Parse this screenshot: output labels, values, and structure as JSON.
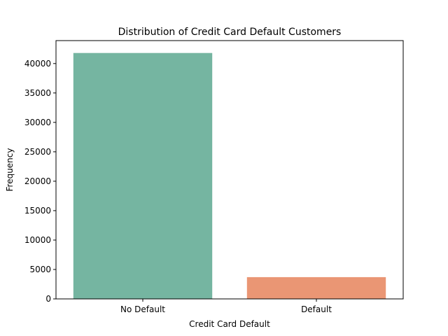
{
  "chart_data": {
    "type": "bar",
    "title": "Distribution of Credit Card Default Customers",
    "xlabel": "Credit Card Default",
    "ylabel": "Frequency",
    "categories": [
      "No Default",
      "Default"
    ],
    "values": [
      41800,
      3700
    ],
    "colors": [
      "#75b5a1",
      "#ea9674"
    ],
    "ylim": [
      0,
      43900
    ],
    "yticks": [
      0,
      5000,
      10000,
      15000,
      20000,
      25000,
      30000,
      35000,
      40000
    ],
    "ytick_labels": [
      "0",
      "5000",
      "10000",
      "15000",
      "20000",
      "25000",
      "30000",
      "35000",
      "40000"
    ],
    "grid": false,
    "legend": "none"
  }
}
